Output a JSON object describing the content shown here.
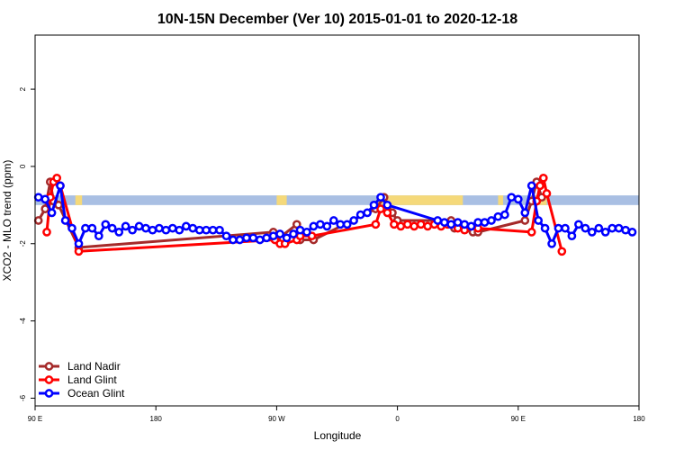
{
  "chart_data": {
    "type": "line",
    "title": "10N-15N December (Ver 10)   2015-01-01 to 2020-12-18",
    "xlabel": "Longitude",
    "ylabel": "XCO2 - MLO trend (ppm)",
    "xlim": [
      0,
      360
    ],
    "ylim": [
      -6.2,
      3.4
    ],
    "x_ticks": [
      {
        "value": 0,
        "label": "90 E"
      },
      {
        "value": 72,
        "label": "180"
      },
      {
        "value": 144,
        "label": "90 W"
      },
      {
        "value": 216,
        "label": "0"
      },
      {
        "value": 288,
        "label": "90 E"
      },
      {
        "value": 360,
        "label": "180"
      }
    ],
    "y_ticks": [
      {
        "value": 2,
        "label": "2"
      },
      {
        "value": 0,
        "label": "0"
      },
      {
        "value": -2,
        "label": "-2"
      },
      {
        "value": -4,
        "label": "-4"
      },
      {
        "value": -6,
        "label": "-6"
      }
    ],
    "land_band": {
      "y_range": [
        -1.0,
        -0.75
      ],
      "ocean_color": "#a9bfe3",
      "land_color": "#f5d97a",
      "land_segments": [
        [
          24,
          28
        ],
        [
          144,
          150
        ],
        [
          204,
          255
        ],
        [
          276,
          279
        ],
        [
          298,
          305
        ]
      ]
    },
    "series": [
      {
        "name": "Land Nadir",
        "color": "#a52a2a",
        "points": [
          [
            2,
            -1.4
          ],
          [
            6,
            -1.1
          ],
          [
            9,
            -0.4
          ],
          [
            11,
            -0.9
          ],
          [
            14,
            -1.0
          ],
          [
            26,
            -2.1
          ],
          [
            142,
            -1.7
          ],
          [
            144,
            -1.9
          ],
          [
            156,
            -1.5
          ],
          [
            158,
            -1.9
          ],
          [
            166,
            -1.9
          ],
          [
            203,
            -1.1
          ],
          [
            208,
            -0.8
          ],
          [
            213,
            -1.2
          ],
          [
            216,
            -1.4
          ],
          [
            248,
            -1.4
          ],
          [
            250,
            -1.6
          ],
          [
            261,
            -1.7
          ],
          [
            264,
            -1.7
          ],
          [
            292,
            -1.4
          ],
          [
            296,
            -0.9
          ],
          [
            299,
            -0.4
          ],
          [
            302,
            -0.8
          ]
        ]
      },
      {
        "name": "Land Glint",
        "color": "#ff0000",
        "points": [
          [
            7,
            -1.7
          ],
          [
            9,
            -0.8
          ],
          [
            11,
            -0.4
          ],
          [
            13,
            -0.3
          ],
          [
            15,
            -0.5
          ],
          [
            26,
            -2.2
          ],
          [
            143,
            -1.9
          ],
          [
            146,
            -2.0
          ],
          [
            149,
            -2.0
          ],
          [
            156,
            -1.9
          ],
          [
            158,
            -1.8
          ],
          [
            165,
            -1.8
          ],
          [
            203,
            -1.5
          ],
          [
            206,
            -1.1
          ],
          [
            210,
            -1.2
          ],
          [
            214,
            -1.5
          ],
          [
            218,
            -1.55
          ],
          [
            222,
            -1.5
          ],
          [
            226,
            -1.55
          ],
          [
            230,
            -1.5
          ],
          [
            234,
            -1.55
          ],
          [
            238,
            -1.5
          ],
          [
            242,
            -1.55
          ],
          [
            246,
            -1.5
          ],
          [
            252,
            -1.6
          ],
          [
            256,
            -1.65
          ],
          [
            264,
            -1.6
          ],
          [
            296,
            -1.7
          ],
          [
            299,
            -0.9
          ],
          [
            301,
            -0.5
          ],
          [
            303,
            -0.3
          ],
          [
            305,
            -0.7
          ],
          [
            314,
            -2.2
          ]
        ]
      },
      {
        "name": "Ocean Glint",
        "color": "#0000ff",
        "points": [
          [
            2,
            -0.8
          ],
          [
            6,
            -0.85
          ],
          [
            10,
            -1.2
          ],
          [
            15,
            -0.5
          ],
          [
            18,
            -1.4
          ],
          [
            22,
            -1.6
          ],
          [
            26,
            -2.0
          ],
          [
            30,
            -1.6
          ],
          [
            34,
            -1.6
          ],
          [
            38,
            -1.8
          ],
          [
            42,
            -1.5
          ],
          [
            46,
            -1.6
          ],
          [
            50,
            -1.7
          ],
          [
            54,
            -1.55
          ],
          [
            58,
            -1.65
          ],
          [
            62,
            -1.55
          ],
          [
            66,
            -1.6
          ],
          [
            70,
            -1.65
          ],
          [
            74,
            -1.6
          ],
          [
            78,
            -1.65
          ],
          [
            82,
            -1.6
          ],
          [
            86,
            -1.65
          ],
          [
            90,
            -1.55
          ],
          [
            94,
            -1.6
          ],
          [
            98,
            -1.65
          ],
          [
            102,
            -1.65
          ],
          [
            106,
            -1.65
          ],
          [
            110,
            -1.65
          ],
          [
            114,
            -1.8
          ],
          [
            118,
            -1.9
          ],
          [
            122,
            -1.9
          ],
          [
            126,
            -1.85
          ],
          [
            130,
            -1.85
          ],
          [
            134,
            -1.9
          ],
          [
            138,
            -1.85
          ],
          [
            142,
            -1.8
          ],
          [
            146,
            -1.75
          ],
          [
            150,
            -1.85
          ],
          [
            154,
            -1.75
          ],
          [
            158,
            -1.65
          ],
          [
            162,
            -1.7
          ],
          [
            166,
            -1.55
          ],
          [
            170,
            -1.5
          ],
          [
            174,
            -1.55
          ],
          [
            178,
            -1.4
          ],
          [
            182,
            -1.5
          ],
          [
            186,
            -1.5
          ],
          [
            190,
            -1.4
          ],
          [
            194,
            -1.25
          ],
          [
            198,
            -1.2
          ],
          [
            202,
            -1.0
          ],
          [
            206,
            -0.8
          ],
          [
            210,
            -1.0
          ],
          [
            240,
            -1.4
          ],
          [
            244,
            -1.45
          ],
          [
            248,
            -1.5
          ],
          [
            252,
            -1.45
          ],
          [
            256,
            -1.5
          ],
          [
            260,
            -1.55
          ],
          [
            264,
            -1.45
          ],
          [
            268,
            -1.45
          ],
          [
            272,
            -1.4
          ],
          [
            276,
            -1.3
          ],
          [
            280,
            -1.25
          ],
          [
            284,
            -0.8
          ],
          [
            288,
            -0.85
          ],
          [
            292,
            -1.2
          ],
          [
            296,
            -0.5
          ],
          [
            300,
            -1.4
          ],
          [
            304,
            -1.6
          ],
          [
            308,
            -2.0
          ],
          [
            312,
            -1.6
          ],
          [
            316,
            -1.6
          ],
          [
            320,
            -1.8
          ],
          [
            324,
            -1.5
          ],
          [
            328,
            -1.6
          ],
          [
            332,
            -1.7
          ],
          [
            336,
            -1.6
          ],
          [
            340,
            -1.7
          ],
          [
            344,
            -1.6
          ],
          [
            348,
            -1.6
          ],
          [
            352,
            -1.65
          ],
          [
            356,
            -1.7
          ]
        ]
      }
    ],
    "legend": {
      "position": "bottom-left"
    }
  }
}
